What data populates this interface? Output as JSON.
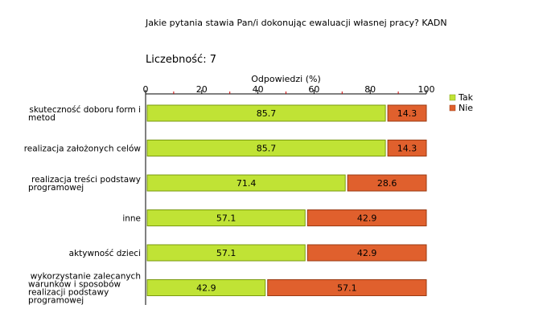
{
  "header": {
    "title": "Jakie pytania stawia Pan/i dokonując ewaluacji własnej pracy?  KADN",
    "count_label": "Liczebność:",
    "count_value": "7"
  },
  "colors": {
    "tak_fill": "#c0e335",
    "tak_stroke": "#7a9a10",
    "nie_fill": "#e0602d",
    "nie_stroke": "#9a3a12",
    "axis": "#000000",
    "tick_red": "#cc0000"
  },
  "chart_data": {
    "type": "bar",
    "orientation": "horizontal",
    "stacked": true,
    "xlabel": "Odpowiedzi (%)",
    "xlim": [
      0,
      100
    ],
    "x_ticks": [
      0,
      20,
      40,
      60,
      80,
      100
    ],
    "categories": [
      [
        "skuteczność doboru form i",
        "metod"
      ],
      [
        "realizacja założonych celów"
      ],
      [
        "realizacja treści podstawy",
        "programowej"
      ],
      [
        "inne"
      ],
      [
        "aktywność dzieci"
      ],
      [
        "wykorzystanie zalecanych",
        "warunków i sposobów",
        "realizacji podstawy",
        "programowej"
      ]
    ],
    "series": [
      {
        "name": "Tak",
        "values": [
          85.7,
          85.7,
          71.4,
          57.1,
          57.1,
          42.9
        ]
      },
      {
        "name": "Nie",
        "values": [
          14.3,
          14.3,
          28.6,
          42.9,
          42.9,
          57.1
        ]
      }
    ],
    "legend_position": "right"
  }
}
